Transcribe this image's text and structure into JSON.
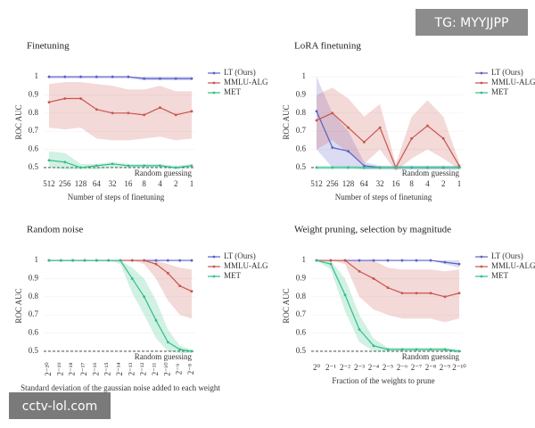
{
  "chart_data": [
    {
      "type": "line",
      "title": "Finetuning",
      "xlabel": "Number of steps of finetuning",
      "ylabel": "ROC AUC",
      "categories": [
        "512",
        "256",
        "128",
        "64",
        "32",
        "16",
        "8",
        "4",
        "2",
        "1"
      ],
      "ylim": [
        0.48,
        1.02
      ],
      "yticks": [
        0.5,
        0.6,
        0.7,
        0.8,
        0.9,
        1
      ],
      "legend": "right",
      "baseline": 0.5,
      "baseline_label": "Random guessing",
      "series": [
        {
          "name": "LT (Ours)",
          "color": "#5b5fc7",
          "values": [
            1,
            1,
            1,
            1,
            1,
            1,
            0.99,
            0.99,
            0.99,
            0.99
          ],
          "lower": [
            0.99,
            0.99,
            0.99,
            0.99,
            0.99,
            0.99,
            0.98,
            0.98,
            0.98,
            0.98
          ],
          "upper": [
            1,
            1,
            1,
            1,
            1,
            1,
            1,
            1,
            1,
            1
          ]
        },
        {
          "name": "MMLU-ALG",
          "color": "#c9544c",
          "values": [
            0.86,
            0.88,
            0.88,
            0.82,
            0.8,
            0.8,
            0.79,
            0.83,
            0.79,
            0.81
          ],
          "lower": [
            0.72,
            0.71,
            0.72,
            0.66,
            0.65,
            0.65,
            0.66,
            0.67,
            0.65,
            0.66
          ],
          "upper": [
            0.96,
            0.97,
            0.97,
            0.96,
            0.95,
            0.93,
            0.93,
            0.95,
            0.92,
            0.92
          ]
        },
        {
          "name": "MET",
          "color": "#2fbf86",
          "values": [
            0.54,
            0.53,
            0.5,
            0.51,
            0.52,
            0.51,
            0.51,
            0.51,
            0.5,
            0.51
          ],
          "lower": [
            0.5,
            0.49,
            0.49,
            0.49,
            0.5,
            0.5,
            0.5,
            0.5,
            0.49,
            0.5
          ],
          "upper": [
            0.59,
            0.58,
            0.52,
            0.52,
            0.53,
            0.52,
            0.52,
            0.52,
            0.51,
            0.52
          ]
        }
      ]
    },
    {
      "type": "line",
      "title": "LoRA finetuning",
      "xlabel": "Number of steps of finetuning",
      "ylabel": "ROC AUC",
      "categories": [
        "512",
        "256",
        "128",
        "64",
        "32",
        "16",
        "8",
        "4",
        "2",
        "1"
      ],
      "ylim": [
        0.48,
        1.02
      ],
      "yticks": [
        0.5,
        0.6,
        0.7,
        0.8,
        0.9,
        1
      ],
      "legend": "right",
      "baseline": 0.5,
      "baseline_label": "Random guessing",
      "series": [
        {
          "name": "LT (Ours)",
          "color": "#5b5fc7",
          "values": [
            0.81,
            0.61,
            0.59,
            0.51,
            0.5,
            0.5,
            0.5,
            0.5,
            0.5,
            0.5
          ],
          "lower": [
            0.6,
            0.5,
            0.5,
            0.49,
            0.49,
            0.49,
            0.49,
            0.49,
            0.49,
            0.49
          ],
          "upper": [
            1,
            0.8,
            0.7,
            0.53,
            0.51,
            0.51,
            0.51,
            0.51,
            0.51,
            0.51
          ]
        },
        {
          "name": "MMLU-ALG",
          "color": "#c9544c",
          "values": [
            0.76,
            0.8,
            0.72,
            0.64,
            0.72,
            0.5,
            0.66,
            0.73,
            0.66,
            0.51
          ],
          "lower": [
            0.6,
            0.65,
            0.58,
            0.52,
            0.6,
            0.48,
            0.55,
            0.6,
            0.55,
            0.49
          ],
          "upper": [
            0.9,
            0.94,
            0.88,
            0.78,
            0.85,
            0.52,
            0.78,
            0.87,
            0.78,
            0.53
          ]
        },
        {
          "name": "MET",
          "color": "#2fbf86",
          "values": [
            0.5,
            0.5,
            0.5,
            0.5,
            0.5,
            0.5,
            0.5,
            0.5,
            0.5,
            0.5
          ],
          "lower": [
            0.49,
            0.49,
            0.49,
            0.49,
            0.49,
            0.49,
            0.49,
            0.49,
            0.49,
            0.49
          ],
          "upper": [
            0.51,
            0.51,
            0.51,
            0.51,
            0.51,
            0.51,
            0.51,
            0.51,
            0.51,
            0.51
          ]
        }
      ]
    },
    {
      "type": "line",
      "title": "Random noise",
      "xlabel": "Standard deviation of the gaussian noise added to each weight",
      "ylabel": "ROC AUC",
      "categories": [
        "2⁻²⁰",
        "2⁻¹⁹",
        "2⁻¹⁸",
        "2⁻¹⁷",
        "2⁻¹⁶",
        "2⁻¹⁵",
        "2⁻¹⁴",
        "2⁻¹³",
        "2⁻¹²",
        "2⁻¹¹",
        "2⁻¹⁰",
        "2⁻⁹",
        "2⁻⁸"
      ],
      "ylim": [
        0.48,
        1.02
      ],
      "yticks": [
        0.5,
        0.6,
        0.7,
        0.8,
        0.9,
        1
      ],
      "legend": "right",
      "baseline": 0.5,
      "baseline_label": "Random guessing",
      "series": [
        {
          "name": "LT (Ours)",
          "color": "#5b5fc7",
          "values": [
            1,
            1,
            1,
            1,
            1,
            1,
            1,
            1,
            1,
            1,
            1,
            1,
            1
          ],
          "lower": [
            1,
            1,
            1,
            1,
            1,
            1,
            1,
            1,
            1,
            1,
            1,
            1,
            1
          ],
          "upper": [
            1,
            1,
            1,
            1,
            1,
            1,
            1,
            1,
            1,
            1,
            1,
            1,
            1
          ]
        },
        {
          "name": "MMLU-ALG",
          "color": "#c9544c",
          "values": [
            1,
            1,
            1,
            1,
            1,
            1,
            1,
            1,
            1,
            0.98,
            0.93,
            0.86,
            0.83
          ],
          "lower": [
            1,
            1,
            1,
            1,
            1,
            1,
            1,
            1,
            0.98,
            0.9,
            0.78,
            0.7,
            0.68
          ],
          "upper": [
            1,
            1,
            1,
            1,
            1,
            1,
            1,
            1,
            1,
            1,
            0.98,
            0.96,
            0.95
          ]
        },
        {
          "name": "MET",
          "color": "#2fbf86",
          "values": [
            1,
            1,
            1,
            1,
            1,
            1,
            1,
            0.9,
            0.8,
            0.67,
            0.55,
            0.51,
            0.5
          ],
          "lower": [
            1,
            1,
            1,
            1,
            1,
            1,
            0.98,
            0.82,
            0.7,
            0.57,
            0.5,
            0.49,
            0.49
          ],
          "upper": [
            1,
            1,
            1,
            1,
            1,
            1,
            1,
            0.96,
            0.9,
            0.78,
            0.62,
            0.53,
            0.51
          ]
        }
      ]
    },
    {
      "type": "line",
      "title": "Weight pruning, selection by magnitude",
      "xlabel": "Fraction of the weights to prune",
      "ylabel": "ROC AUC",
      "categories": [
        "2⁰",
        "2⁻¹",
        "2⁻²",
        "2⁻³",
        "2⁻⁴",
        "2⁻⁵",
        "2⁻⁶",
        "2⁻⁷",
        "2⁻⁸",
        "2⁻⁹",
        "2⁻¹⁰"
      ],
      "ylim": [
        0.48,
        1.02
      ],
      "yticks": [
        0.5,
        0.6,
        0.7,
        0.8,
        0.9,
        1
      ],
      "legend": "right",
      "baseline": 0.5,
      "baseline_label": "Random guessing",
      "series": [
        {
          "name": "LT (Ours)",
          "color": "#5b5fc7",
          "values": [
            1,
            1,
            1,
            1,
            1,
            1,
            1,
            1,
            1,
            0.99,
            0.98
          ],
          "lower": [
            1,
            1,
            1,
            1,
            1,
            1,
            1,
            1,
            1,
            0.98,
            0.96
          ],
          "upper": [
            1,
            1,
            1,
            1,
            1,
            1,
            1,
            1,
            1,
            1,
            1
          ]
        },
        {
          "name": "MMLU-ALG",
          "color": "#c9544c",
          "values": [
            1,
            1,
            1,
            0.94,
            0.9,
            0.85,
            0.82,
            0.82,
            0.82,
            0.8,
            0.82
          ],
          "lower": [
            1,
            1,
            0.98,
            0.8,
            0.73,
            0.7,
            0.68,
            0.68,
            0.68,
            0.66,
            0.68
          ],
          "upper": [
            1,
            1,
            1,
            1,
            1,
            0.96,
            0.95,
            0.95,
            0.95,
            0.94,
            0.95
          ]
        },
        {
          "name": "MET",
          "color": "#2fbf86",
          "values": [
            1,
            0.98,
            0.81,
            0.62,
            0.53,
            0.51,
            0.51,
            0.51,
            0.51,
            0.51,
            0.5
          ],
          "lower": [
            1,
            0.95,
            0.72,
            0.55,
            0.5,
            0.5,
            0.5,
            0.5,
            0.5,
            0.5,
            0.49
          ],
          "upper": [
            1,
            1,
            0.9,
            0.7,
            0.57,
            0.52,
            0.52,
            0.52,
            0.52,
            0.52,
            0.51
          ]
        }
      ]
    }
  ],
  "watermarks": [
    "TG: MYYJJPP",
    "cctv-lol.com"
  ]
}
